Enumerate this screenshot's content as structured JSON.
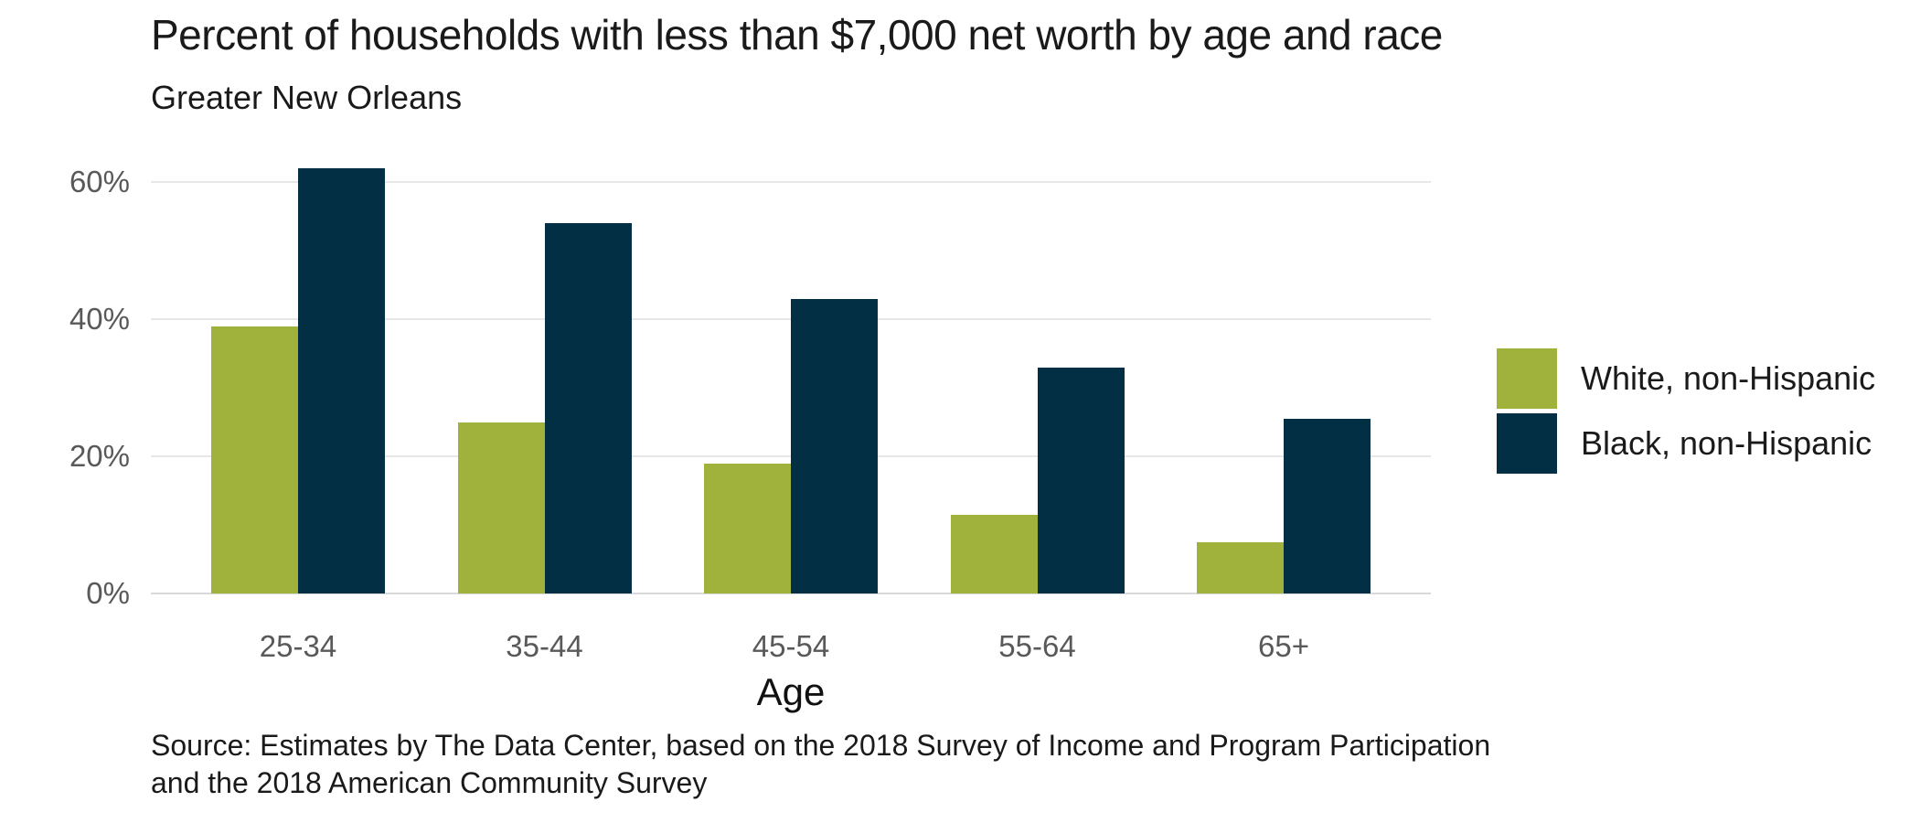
{
  "title": "Percent of households with less than $7,000 net worth by age and race",
  "subtitle": "Greater New Orleans",
  "source": {
    "line1": "Source: Estimates by The Data Center, based on the 2018 Survey of Income and Program Participation",
    "line2": "and the 2018 American Community Survey"
  },
  "colors": {
    "white_series": "#a0b13c",
    "black_series": "#032f44",
    "gridline": "#e7e7e7",
    "tick_text": "#595959",
    "title_text": "#1a1a1a"
  },
  "chart_data": {
    "type": "bar",
    "title": "Percent of households with less than $7,000 net worth by age and race",
    "subtitle": "Greater New Orleans",
    "categories": [
      "25-34",
      "35-44",
      "45-54",
      "55-64",
      "65+"
    ],
    "series": [
      {
        "name": "White, non-Hispanic",
        "color": "#a0b13c",
        "values": [
          39,
          25,
          19,
          11.5,
          7.5
        ]
      },
      {
        "name": "Black, non-Hispanic",
        "color": "#032f44",
        "values": [
          62,
          54,
          43,
          33,
          25.5
        ]
      }
    ],
    "xlabel": "Age",
    "ylabel": "",
    "y_ticks": [
      {
        "label": "0%",
        "value": 0
      },
      {
        "label": "20%",
        "value": 20
      },
      {
        "label": "40%",
        "value": 40
      },
      {
        "label": "60%",
        "value": 60
      }
    ],
    "ylim": [
      0,
      62
    ],
    "grid": true,
    "legend_position": "right"
  }
}
